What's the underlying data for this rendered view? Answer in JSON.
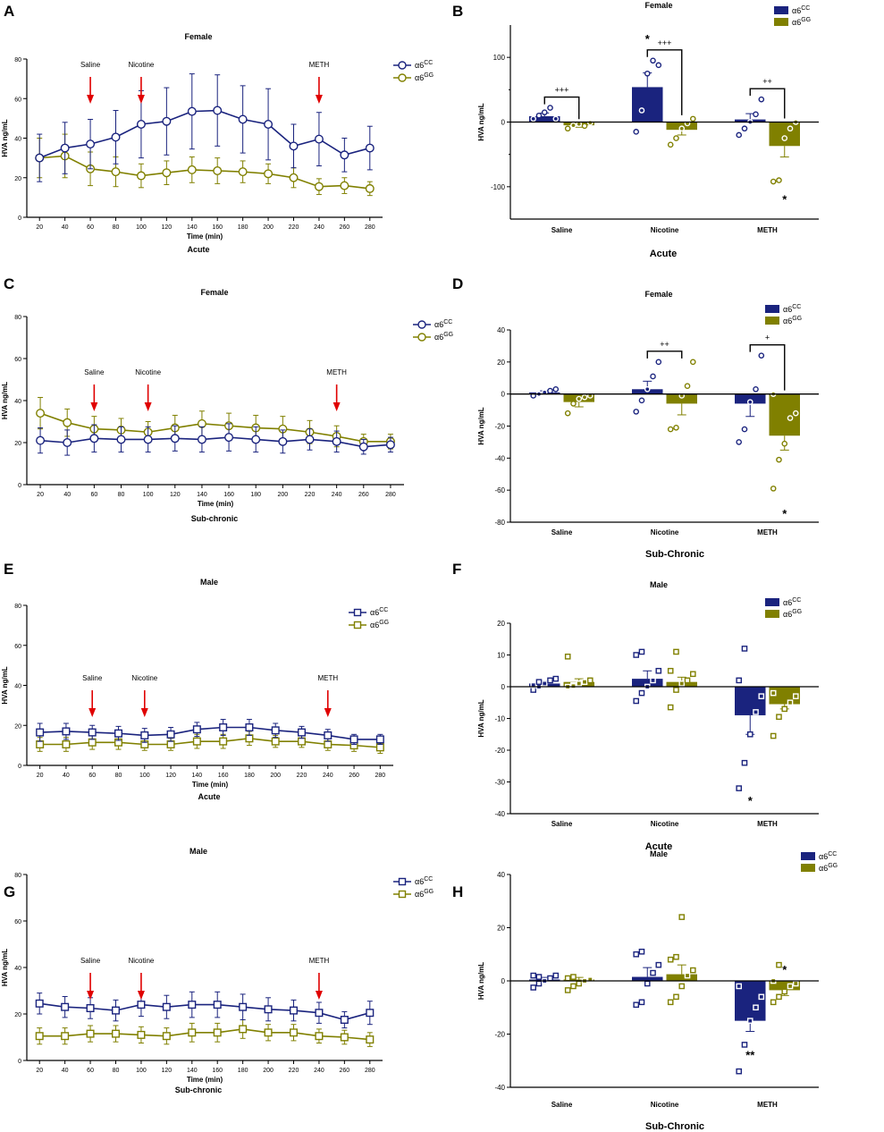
{
  "colors": {
    "cc": "#1a237e",
    "gg": "#808000",
    "arrow": "#e00000",
    "axis": "#000000"
  },
  "line_x": [
    20,
    40,
    60,
    80,
    100,
    120,
    140,
    160,
    180,
    200,
    220,
    240,
    260,
    280
  ],
  "time_label": "Time (min)",
  "y_label": "HVA ng/mL",
  "chart_data": [
    {
      "panel": "A",
      "type": "line",
      "title": "Female",
      "subtitle": "Acute",
      "xlabel": "Time (min)",
      "ylabel": "HVA ng/mL",
      "ylim": [
        0,
        80
      ],
      "yticks": [
        0,
        20,
        40,
        60,
        80
      ],
      "marker": "circle",
      "legend": [
        "α6",
        "CC",
        "α6",
        "GG"
      ],
      "series": [
        {
          "name": "α6CC",
          "values": [
            30,
            35,
            37,
            40.5,
            47,
            48.5,
            53.5,
            54,
            49.5,
            47,
            36,
            39.5,
            31.5,
            35
          ],
          "err": [
            12,
            13,
            12.5,
            13.5,
            17,
            17,
            19,
            18,
            17,
            18,
            11,
            13.5,
            8.5,
            11
          ]
        },
        {
          "name": "α6GG",
          "values": [
            30,
            31,
            24.5,
            23,
            21,
            22.5,
            24,
            23.5,
            23,
            22,
            20,
            15.5,
            16,
            14.5
          ],
          "err": [
            10,
            11,
            8.5,
            7.5,
            6,
            6,
            6.5,
            6.5,
            5.5,
            5,
            5,
            4,
            4,
            3.5
          ]
        }
      ],
      "arrows": [
        {
          "x": 60,
          "label": "Saline"
        },
        {
          "x": 100,
          "label": "Nicotine"
        },
        {
          "x": 240,
          "label": "METH"
        }
      ]
    },
    {
      "panel": "B",
      "type": "bar",
      "title": "Female",
      "xlabel": "Acute",
      "ylabel": "HVA ng/mL",
      "ylim": [
        -150,
        150
      ],
      "yticks": [
        -100,
        0,
        100
      ],
      "marker": "circle",
      "categories": [
        "Saline",
        "Nicotine",
        "METH"
      ],
      "legend": [
        "α6",
        "CC",
        "α6",
        "GG"
      ],
      "series": [
        {
          "name": "α6CC",
          "values": [
            9,
            54,
            4
          ],
          "err": [
            5,
            22,
            9
          ],
          "points": [
            [
              5,
              10,
              15,
              22,
              5
            ],
            [
              -15,
              18,
              75,
              95,
              88
            ],
            [
              -20,
              -10,
              0,
              12,
              35
            ]
          ]
        },
        {
          "name": "α6GG",
          "values": [
            -5,
            -12,
            -37
          ],
          "err": [
            3,
            8,
            17
          ],
          "points": [
            [
              -10,
              -5,
              -3,
              -6,
              -1
            ],
            [
              -35,
              -25,
              -10,
              -2,
              5
            ],
            [
              -92,
              -90,
              -25,
              -10,
              0
            ]
          ]
        }
      ],
      "brackets": [
        {
          "cat": 0,
          "label": "+++"
        },
        {
          "cat": 1,
          "label": "+++"
        },
        {
          "cat": 2,
          "label": "++"
        }
      ],
      "stars": [
        {
          "cat": 1,
          "series": 0,
          "value": 128,
          "label": "*"
        },
        {
          "cat": 2,
          "series": 1,
          "value": -120,
          "label": "*"
        }
      ]
    },
    {
      "panel": "C",
      "type": "line",
      "title": "Female",
      "subtitle": "Sub-chronic",
      "xlabel": "Time (min)",
      "ylabel": "HVA ng/mL",
      "ylim": [
        0,
        80
      ],
      "yticks": [
        0,
        20,
        40,
        60,
        80
      ],
      "marker": "circle",
      "legend": [
        "α6",
        "CC",
        "α6",
        "GG"
      ],
      "series": [
        {
          "name": "α6CC",
          "values": [
            21,
            20,
            22,
            21.5,
            21.5,
            22,
            21.5,
            22.5,
            21.5,
            20.5,
            21.5,
            20.5,
            18,
            19
          ],
          "err": [
            6,
            6,
            6.5,
            6,
            6,
            6,
            6,
            6.5,
            6,
            5.5,
            5,
            5,
            3.5,
            3.5
          ]
        },
        {
          "name": "α6GG",
          "values": [
            34,
            29.5,
            26.5,
            26,
            25,
            27,
            29,
            28,
            27,
            26.5,
            25,
            23,
            20.5,
            20.5
          ],
          "err": [
            7.5,
            6.5,
            6,
            5.5,
            5,
            6,
            6,
            6,
            6,
            6,
            5.5,
            5,
            3.5,
            3.5
          ]
        }
      ],
      "arrows": [
        {
          "x": 60,
          "label": "Saline"
        },
        {
          "x": 100,
          "label": "Nicotine"
        },
        {
          "x": 240,
          "label": "METH"
        }
      ]
    },
    {
      "panel": "D",
      "type": "bar",
      "title": "Female",
      "xlabel": "Sub-Chronic",
      "ylabel": "HVA ng/mL",
      "ylim": [
        -80,
        40
      ],
      "yticks": [
        -80,
        -60,
        -40,
        -20,
        0,
        20,
        40
      ],
      "marker": "circle",
      "categories": [
        "Saline",
        "Nicotine",
        "METH"
      ],
      "legend": [
        "α6",
        "CC",
        "α6",
        "GG"
      ],
      "series": [
        {
          "name": "α6CC",
          "values": [
            1,
            3,
            -6
          ],
          "err": [
            1,
            5,
            8
          ],
          "points": [
            [
              -1,
              0,
              1,
              2,
              3
            ],
            [
              -11,
              -4,
              3,
              11,
              20
            ],
            [
              -30,
              -22,
              -5,
              3,
              24
            ]
          ]
        },
        {
          "name": "α6GG",
          "values": [
            -5,
            -6,
            -26
          ],
          "err": [
            3,
            7,
            9
          ],
          "points": [
            [
              -12,
              -6,
              -3,
              -2,
              -1
            ],
            [
              -22,
              -21,
              -1,
              5,
              20
            ],
            [
              -59,
              -41,
              -31,
              -15,
              -12,
              0
            ]
          ]
        }
      ],
      "brackets": [
        {
          "cat": 1,
          "label": "++"
        },
        {
          "cat": 2,
          "label": "+"
        }
      ],
      "stars": [
        {
          "cat": 2,
          "series": 1,
          "value": -75,
          "label": "*"
        }
      ]
    },
    {
      "panel": "E",
      "type": "line",
      "title": "Male",
      "subtitle": "Acute",
      "xlabel": "Time (min)",
      "ylabel": "HVA ng/mL",
      "ylim": [
        0,
        80
      ],
      "yticks": [
        0,
        20,
        40,
        60,
        80
      ],
      "marker": "square",
      "legend": [
        "α6",
        "CC",
        "α6",
        "GG"
      ],
      "series": [
        {
          "name": "α6CC",
          "values": [
            16.5,
            17,
            16.5,
            16,
            15,
            15.5,
            18,
            19,
            19,
            17.5,
            16.5,
            15,
            13,
            13
          ],
          "err": [
            4.5,
            4,
            3.5,
            3.5,
            3.5,
            3.5,
            3.5,
            4,
            4,
            3.5,
            3,
            3,
            2.5,
            2.5
          ]
        },
        {
          "name": "α6GG",
          "values": [
            10.5,
            10.5,
            11.5,
            11.5,
            10.5,
            10.5,
            12,
            12,
            13.5,
            12,
            12,
            10.5,
            10,
            9
          ],
          "err": [
            3.5,
            3.5,
            3.5,
            3.5,
            3,
            3,
            3.5,
            3.5,
            3.5,
            3,
            3,
            3,
            3,
            3
          ]
        }
      ],
      "arrows": [
        {
          "x": 60,
          "label": "Saline"
        },
        {
          "x": 100,
          "label": "Nicotine"
        },
        {
          "x": 240,
          "label": "METH"
        }
      ]
    },
    {
      "panel": "F",
      "type": "bar",
      "title": "Male",
      "xlabel": "Acute",
      "ylabel": "HVA ng/mL",
      "ylim": [
        -40,
        20
      ],
      "yticks": [
        -40,
        -30,
        -20,
        -10,
        0,
        10,
        20
      ],
      "marker": "square",
      "categories": [
        "Saline",
        "Nicotine",
        "METH"
      ],
      "legend": [
        "α6",
        "CC",
        "α6",
        "GG"
      ],
      "series": [
        {
          "name": "α6CC",
          "values": [
            1,
            2.5,
            -9
          ],
          "err": [
            0.8,
            2.5,
            6
          ],
          "points": [
            [
              -1,
              0,
              1,
              2,
              2.5,
              0.5,
              1.5
            ],
            [
              -4.5,
              -2,
              0,
              2,
              5,
              10,
              11
            ],
            [
              -32,
              -24,
              -15,
              -8,
              -3,
              2,
              12
            ]
          ]
        },
        {
          "name": "α6GG",
          "values": [
            1.5,
            1.5,
            -5.5
          ],
          "err": [
            1,
            1.5,
            1.5
          ],
          "points": [
            [
              0,
              0.5,
              1,
              1.5,
              2,
              9.5,
              0.2
            ],
            [
              -6.5,
              -1,
              1,
              2,
              4,
              5,
              11
            ],
            [
              -15.5,
              -9.5,
              -7,
              -5,
              -3,
              -2
            ]
          ]
        }
      ],
      "brackets": [],
      "stars": [
        {
          "cat": 2,
          "series": 0,
          "value": -36,
          "label": "*"
        }
      ]
    },
    {
      "panel": "G",
      "type": "line",
      "title": "Male",
      "subtitle": "Sub-chronic",
      "xlabel": "Time (min)",
      "ylabel": "HVA ng/mL",
      "ylim": [
        0,
        80
      ],
      "yticks": [
        0,
        20,
        40,
        60,
        80
      ],
      "marker": "square",
      "legend": [
        "α6",
        "CC",
        "α6",
        "GG"
      ],
      "series": [
        {
          "name": "α6CC",
          "values": [
            24.5,
            23,
            22.5,
            21.5,
            24,
            23,
            24,
            24,
            23,
            22,
            21.5,
            20.5,
            17.5,
            20.5
          ],
          "err": [
            4.5,
            4.5,
            4.5,
            4.5,
            5,
            5,
            5.5,
            5.5,
            5.5,
            5,
            4.5,
            4.5,
            3.5,
            5
          ]
        },
        {
          "name": "α6GG",
          "values": [
            10.5,
            10.5,
            11.5,
            11.5,
            11,
            10.5,
            12,
            12,
            13.5,
            12,
            12,
            10.5,
            10,
            9
          ],
          "err": [
            3.5,
            3.5,
            3.5,
            3.5,
            3.5,
            3.5,
            4,
            4,
            4,
            3.5,
            3.5,
            3,
            3,
            3
          ]
        }
      ],
      "arrows": [
        {
          "x": 60,
          "label": "Saline"
        },
        {
          "x": 100,
          "label": "Nicotine"
        },
        {
          "x": 240,
          "label": "METH"
        }
      ]
    },
    {
      "panel": "H",
      "type": "bar",
      "title": "Male",
      "xlabel": "Sub-Chronic",
      "ylabel": "HVA ng/mL",
      "ylim": [
        -40,
        40
      ],
      "yticks": [
        -40,
        -20,
        0,
        20,
        40
      ],
      "marker": "square",
      "categories": [
        "Saline",
        "Nicotine",
        "METH"
      ],
      "legend": [
        "α6",
        "CC",
        "α6",
        "GG"
      ],
      "series": [
        {
          "name": "α6CC",
          "values": [
            0.5,
            1.5,
            -15
          ],
          "err": [
            0.8,
            3.5,
            4
          ],
          "points": [
            [
              -2.5,
              -1,
              0,
              1,
              2,
              2,
              1.5
            ],
            [
              -9,
              -8,
              -1,
              3,
              6,
              10,
              11
            ],
            [
              -34,
              -24,
              -15,
              -10,
              -6,
              -2
            ]
          ]
        },
        {
          "name": "α6GG",
          "values": [
            0.5,
            2.5,
            -3.5
          ],
          "err": [
            0.8,
            3.5,
            2
          ],
          "points": [
            [
              -3.5,
              -2,
              -1,
              0,
              0.5,
              1,
              1.5
            ],
            [
              -8,
              -6,
              -2,
              2,
              4,
              8,
              9,
              24
            ],
            [
              -8,
              -6,
              -4,
              -2,
              -1,
              0,
              6
            ]
          ]
        }
      ],
      "brackets": [],
      "stars": [
        {
          "cat": 2,
          "series": 0,
          "value": -28,
          "label": "**"
        },
        {
          "cat": 2,
          "series": 1,
          "value": 4,
          "label": "*"
        }
      ]
    }
  ]
}
